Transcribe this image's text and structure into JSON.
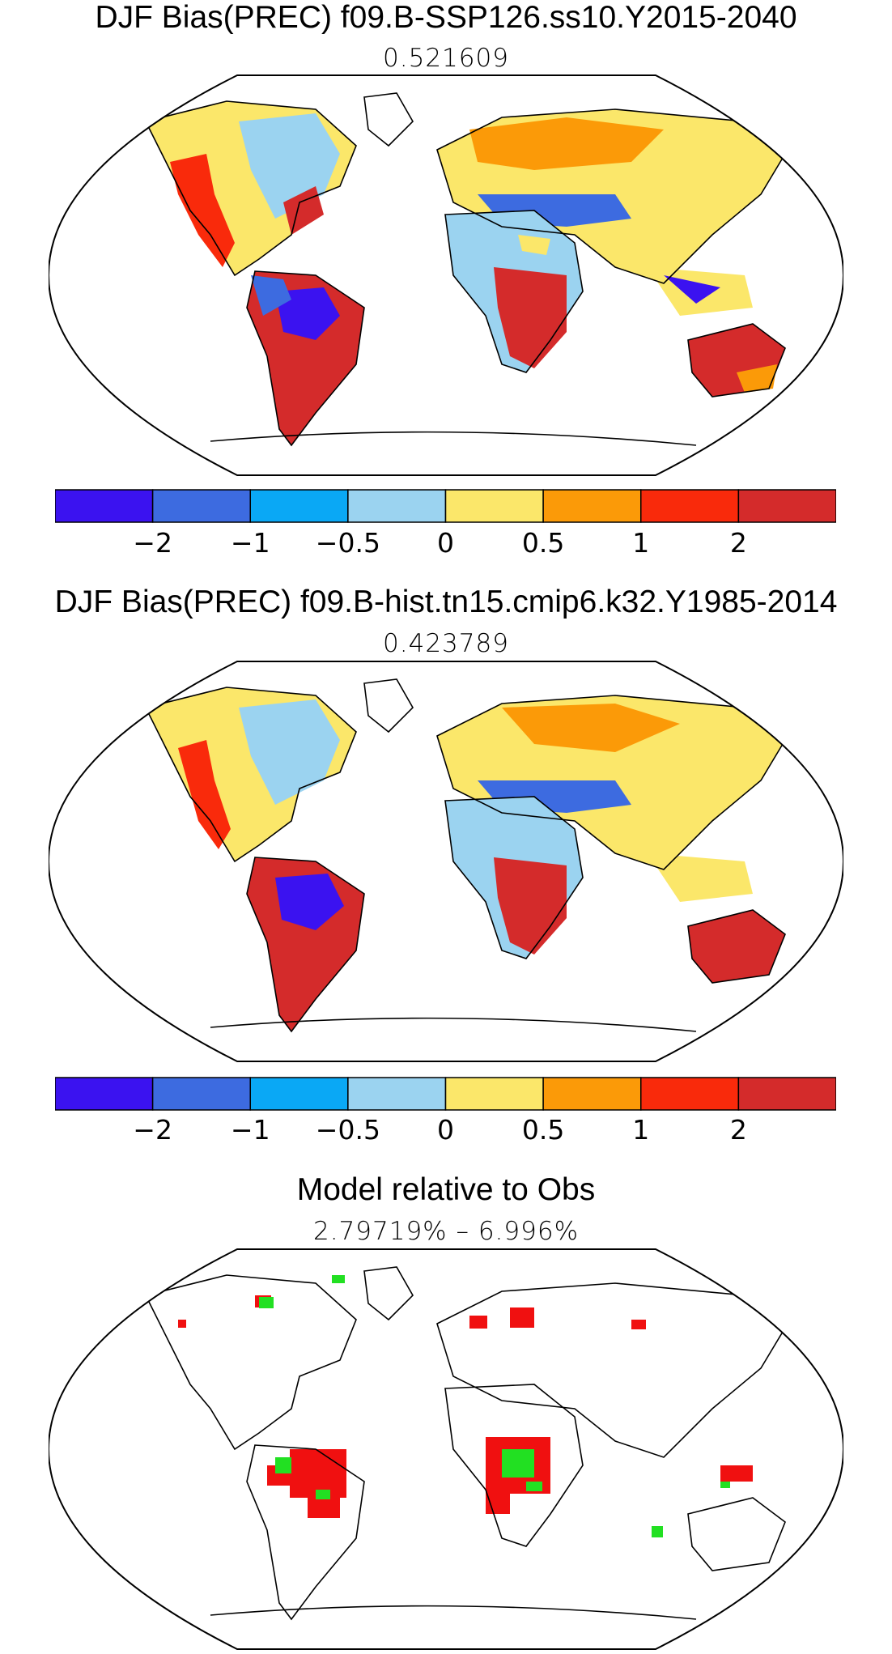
{
  "panels": [
    {
      "title": "DJF Bias(PREC) f09.B-SSP126.ss10.Y2015-2040",
      "subtitle": "0.521609"
    },
    {
      "title": "DJF Bias(PREC) f09.B-hist.tn15.cmip6.k32.Y1985-2014",
      "subtitle": "0.423789"
    },
    {
      "title": "Model relative to Obs",
      "subtitle": "2.79719% – 6.996%"
    }
  ],
  "colorbar": {
    "colors": [
      "#3b12f0",
      "#3d6be0",
      "#0aa8f5",
      "#9bd3f0",
      "#fbe76a",
      "#fb9a08",
      "#f92a0b",
      "#d42b2b"
    ],
    "tick_labels": [
      "−2",
      "−1",
      "−0.5",
      "0",
      "0.5",
      "1",
      "2"
    ]
  },
  "significance_colors": {
    "red": "#f01010",
    "green": "#22e022"
  }
}
